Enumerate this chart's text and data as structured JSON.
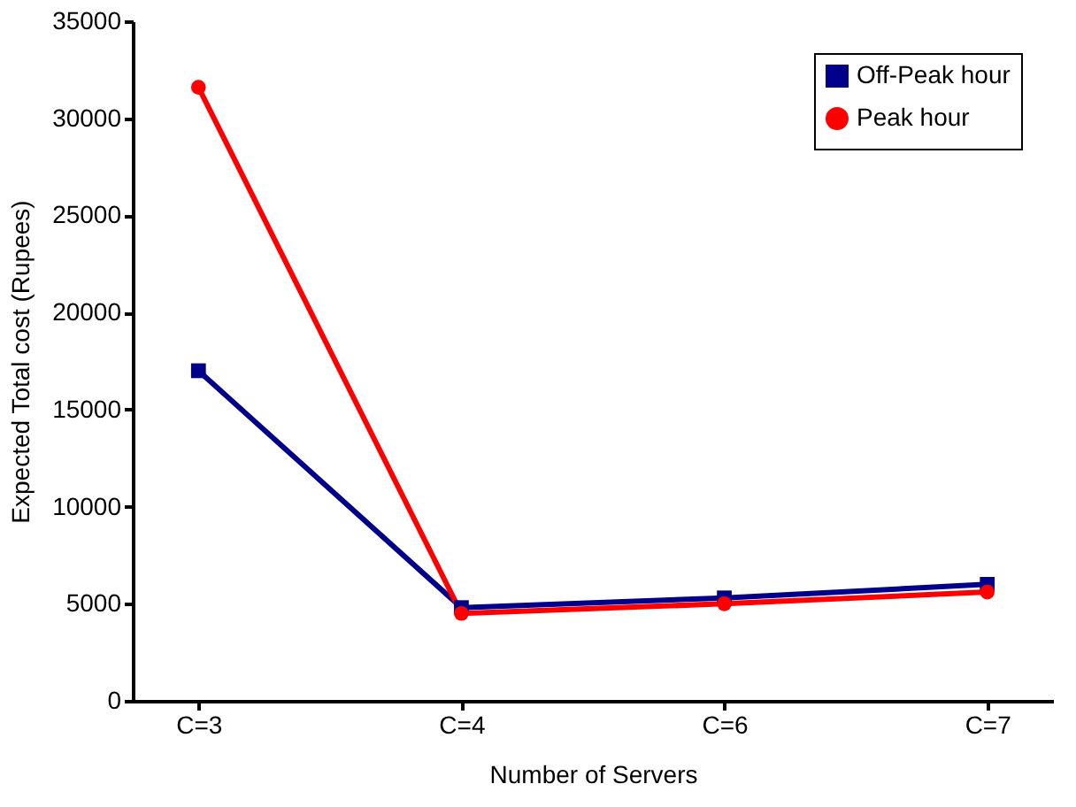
{
  "chart_data": {
    "type": "line",
    "xlabel": "Number of Servers",
    "ylabel": "Expected Total cost (Rupees)",
    "categories": [
      "C=3",
      "C=4",
      "C=6",
      "C=7"
    ],
    "series": [
      {
        "name": "Off-Peak hour",
        "color": "#00008b",
        "marker": "square",
        "values": [
          17000,
          4800,
          5300,
          6000
        ]
      },
      {
        "name": "Peak hour",
        "color": "#ff0000",
        "marker": "circle",
        "values": [
          31600,
          4500,
          5000,
          5600
        ]
      }
    ],
    "ylim": [
      0,
      35000
    ],
    "yticks": [
      0,
      5000,
      10000,
      15000,
      20000,
      25000,
      30000,
      35000
    ],
    "grid": false,
    "legend": "top right",
    "line_style": "solid"
  }
}
